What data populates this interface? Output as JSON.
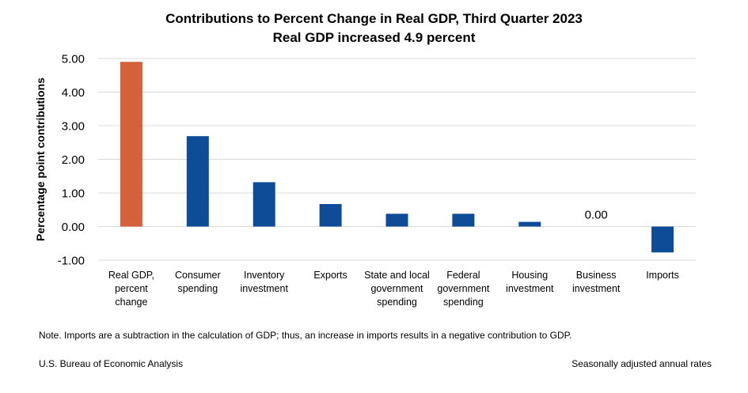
{
  "chart_data": {
    "type": "bar",
    "title": "Contributions to Percent Change in Real GDP, Third Quarter 2023",
    "subtitle": "Real GDP increased 4.9 percent",
    "ylabel": "Percentage point contributions",
    "xlabel": "",
    "ylim": [
      -1.0,
      5.0
    ],
    "yticks": [
      "5.00",
      "4.00",
      "3.00",
      "2.00",
      "1.00",
      "0.00",
      "-1.00"
    ],
    "grid": true,
    "categories": [
      [
        "Real GDP,",
        "percent",
        "change"
      ],
      [
        "Consumer",
        "spending"
      ],
      [
        "Inventory",
        "investment"
      ],
      [
        "Exports"
      ],
      [
        "State and local",
        "government",
        "spending"
      ],
      [
        "Federal",
        "government",
        "spending"
      ],
      [
        "Housing",
        "investment"
      ],
      [
        "Business",
        "investment"
      ],
      [
        "Imports"
      ]
    ],
    "values": [
      4.9,
      2.69,
      1.32,
      0.67,
      0.38,
      0.38,
      0.14,
      0.0,
      -0.77
    ],
    "colors": [
      "#d4613a",
      "#0f4c97",
      "#0f4c97",
      "#0f4c97",
      "#0f4c97",
      "#0f4c97",
      "#0f4c97",
      "#0f4c97",
      "#0f4c97"
    ],
    "data_labels": [
      "",
      "",
      "",
      "",
      "",
      "",
      "",
      "0.00",
      ""
    ],
    "note": "Note. Imports are a subtraction in the calculation of GDP; thus, an increase in imports results in a negative contribution to GDP.",
    "source": "U.S. Bureau of Economic Analysis",
    "footer_right": "Seasonally adjusted annual rates"
  }
}
